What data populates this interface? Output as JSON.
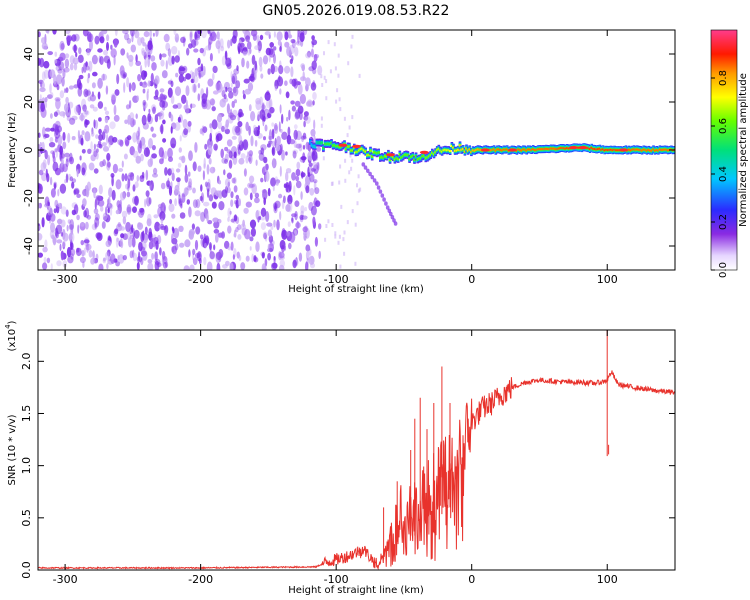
{
  "title": "GN05.2026.019.08.53.R22",
  "colors": {
    "snr_line": "#e8322c",
    "noise_base": "#7a2be8",
    "noise_light": "#c6a6f5"
  },
  "chart_data": [
    {
      "type": "heatmap",
      "xlabel": "Height of straight line (km)",
      "ylabel": "Frequency (Hz)",
      "xlim": [
        -320,
        150
      ],
      "ylim": [
        -50,
        50
      ],
      "xticks": [
        -300,
        -200,
        -100,
        0,
        100
      ],
      "yticks": [
        -40,
        -20,
        0,
        20,
        40
      ],
      "colorbar": {
        "label": "Normalized spectral amplitude",
        "range": [
          0,
          1
        ],
        "ticks": [
          "0.0",
          "0.2",
          "0.4",
          "0.6",
          "0.8"
        ],
        "colormap": "rainbow (white-magenta-blue-cyan-green-yellow-red-magenta)"
      },
      "noise_region": {
        "x_from": -320,
        "x_to": -112,
        "amplitude": 0.1
      },
      "signal_track": [
        {
          "x": -120,
          "freq": 3,
          "amp": 0.35
        },
        {
          "x": -110,
          "freq": 2,
          "amp": 0.55
        },
        {
          "x": -100,
          "freq": 2,
          "amp": 0.6
        },
        {
          "x": -90,
          "freq": 1,
          "amp": 0.65
        },
        {
          "x": -80,
          "freq": -1,
          "amp": 0.7
        },
        {
          "x": -70,
          "freq": -2,
          "amp": 0.6
        },
        {
          "x": -60,
          "freq": -3,
          "amp": 0.65
        },
        {
          "x": -50,
          "freq": -2,
          "amp": 0.6
        },
        {
          "x": -40,
          "freq": -4,
          "amp": 0.6
        },
        {
          "x": -30,
          "freq": -1,
          "amp": 0.65
        },
        {
          "x": -20,
          "freq": 0,
          "amp": 0.7
        },
        {
          "x": -10,
          "freq": 1,
          "amp": 0.75
        },
        {
          "x": 0,
          "freq": 0,
          "amp": 0.8
        },
        {
          "x": 20,
          "freq": 0,
          "amp": 0.85
        },
        {
          "x": 40,
          "freq": 0,
          "amp": 0.85
        },
        {
          "x": 60,
          "freq": 0.5,
          "amp": 0.85
        },
        {
          "x": 80,
          "freq": 1,
          "amp": 0.9
        },
        {
          "x": 100,
          "freq": 0,
          "amp": 0.9
        },
        {
          "x": 120,
          "freq": 0,
          "amp": 0.85
        },
        {
          "x": 150,
          "freq": 0,
          "amp": 0.85
        }
      ],
      "faint_branch": [
        {
          "x": -80,
          "freq": -6
        },
        {
          "x": -70,
          "freq": -14
        },
        {
          "x": -62,
          "freq": -24
        },
        {
          "x": -55,
          "freq": -32
        }
      ]
    },
    {
      "type": "line",
      "xlabel": "Height of straight line (km)",
      "ylabel": "SNR (10 * v/v)",
      "yscale_label": "(x10",
      "yscale_exp": "4",
      "yscale_close": ")",
      "xlim": [
        -320,
        150
      ],
      "ylim": [
        0,
        2.3
      ],
      "xticks": [
        -300,
        -200,
        -100,
        0,
        100
      ],
      "yticks": [
        "0.0",
        "0.5",
        "1.0",
        "1.5",
        "2.0"
      ],
      "series": [
        {
          "name": "SNR",
          "x": [
            -320,
            -200,
            -115,
            -108,
            -100,
            -90,
            -80,
            -70,
            -62,
            -55,
            -48,
            -40,
            -32,
            -25,
            -18,
            -10,
            -4,
            2,
            8,
            15,
            22,
            30,
            40,
            50,
            60,
            70,
            80,
            90,
            96,
            100,
            103,
            108,
            115,
            125,
            135,
            150
          ],
          "y": [
            0.02,
            0.02,
            0.03,
            0.07,
            0.1,
            0.14,
            0.2,
            0.05,
            0.25,
            0.45,
            0.55,
            0.55,
            0.75,
            0.85,
            0.95,
            1.15,
            1.3,
            1.45,
            1.55,
            1.6,
            1.68,
            1.75,
            1.8,
            1.82,
            1.81,
            1.8,
            1.8,
            1.79,
            1.8,
            1.82,
            1.9,
            1.78,
            1.76,
            1.74,
            1.72,
            1.7
          ]
        }
      ],
      "spikes": [
        {
          "x": -82,
          "y": 0.2
        },
        {
          "x": -65,
          "y": 0.6
        },
        {
          "x": -55,
          "y": 0.85
        },
        {
          "x": -45,
          "y": 1.15
        },
        {
          "x": -42,
          "y": 1.45
        },
        {
          "x": -38,
          "y": 1.65
        },
        {
          "x": -33,
          "y": 1.35
        },
        {
          "x": -28,
          "y": 1.6
        },
        {
          "x": -22,
          "y": 1.95
        },
        {
          "x": -16,
          "y": 1.6
        },
        {
          "x": 100,
          "y": 2.3
        },
        {
          "x": 101,
          "y": 1.2
        }
      ]
    }
  ]
}
